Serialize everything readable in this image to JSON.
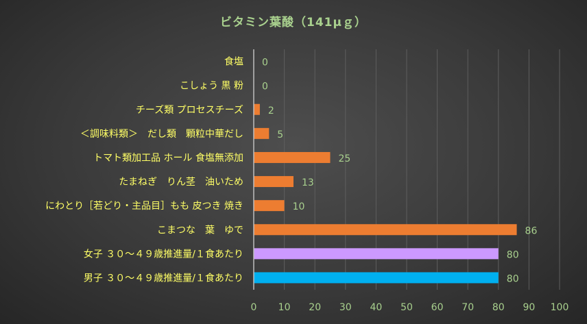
{
  "chart_data": {
    "type": "bar",
    "orientation": "horizontal",
    "title": "ビタミン葉酸（141μｇ）",
    "categories": [
      "食塩",
      "こしょう 黒 粉",
      "チーズ類 プロセスチーズ",
      "＜調味料類＞　だし類　顆粒中華だし",
      "トマト類加工品 ホール 食塩無添加",
      "たまねぎ　りん茎　油いため",
      "にわとり［若どり・主品目］もも 皮つき 焼き",
      "こまつな　葉　ゆで",
      "女子 ３０～４９歳推進量/１食あたり",
      "男子 ３０～４９歳推進量/１食あたり"
    ],
    "values": [
      0,
      0,
      2,
      5,
      25,
      13,
      10,
      86,
      80,
      80
    ],
    "bar_colors": [
      "#ed7d31",
      "#ed7d31",
      "#ed7d31",
      "#ed7d31",
      "#ed7d31",
      "#ed7d31",
      "#ed7d31",
      "#ed7d31",
      "#cc99ff",
      "#00b0f0"
    ],
    "xlim": [
      0,
      100
    ],
    "xticks": [
      0,
      10,
      20,
      30,
      40,
      50,
      60,
      70,
      80,
      90,
      100
    ],
    "grid": true,
    "legend": "none",
    "colors": {
      "category_text": "#ffff66",
      "value_text": "#a9d18e",
      "tick_text": "#a9d18e",
      "title_text": "#a9d18e",
      "gridline": "#5e5e5e"
    }
  }
}
